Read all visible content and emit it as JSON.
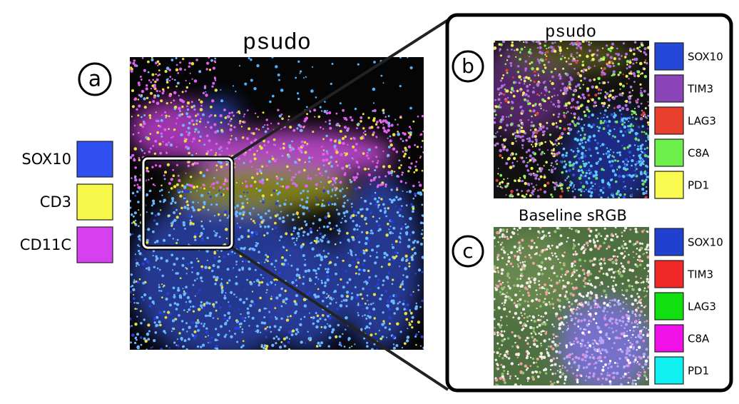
{
  "panels": [
    {
      "label": "a",
      "title": "psudo",
      "legend": [
        {
          "name": "SOX10",
          "color": "#2f4ff0"
        },
        {
          "name": "CD3",
          "color": "#f7f74a"
        },
        {
          "name": "CD11C",
          "color": "#d640ee"
        }
      ]
    },
    {
      "label": "b",
      "title": "psudo",
      "legend": [
        {
          "name": "SOX10",
          "color": "#2448d8"
        },
        {
          "name": "TIM3",
          "color": "#8a44b8"
        },
        {
          "name": "LAG3",
          "color": "#e8402c"
        },
        {
          "name": "C8A",
          "color": "#6ef04c"
        },
        {
          "name": "PD1",
          "color": "#fafa50"
        }
      ]
    },
    {
      "label": "c",
      "title": "Baseline sRGB",
      "legend": [
        {
          "name": "SOX10",
          "color": "#2040d0"
        },
        {
          "name": "TIM3",
          "color": "#f02828"
        },
        {
          "name": "LAG3",
          "color": "#10e010"
        },
        {
          "name": "C8A",
          "color": "#f010e8"
        },
        {
          "name": "PD1",
          "color": "#10f0f0"
        }
      ]
    }
  ]
}
